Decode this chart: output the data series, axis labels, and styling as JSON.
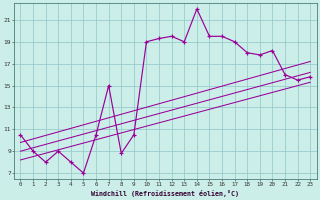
{
  "xlabel": "Windchill (Refroidissement éolien,°C)",
  "bg_color": "#cceee8",
  "grid_color": "#99cccc",
  "line_color": "#990099",
  "xlim": [
    -0.5,
    23.5
  ],
  "ylim": [
    6.5,
    22.5
  ],
  "xtick_vals": [
    0,
    1,
    2,
    3,
    4,
    5,
    6,
    7,
    8,
    9,
    10,
    11,
    12,
    13,
    14,
    15,
    16,
    17,
    18,
    19,
    20,
    21,
    22,
    23
  ],
  "ytick_vals": [
    7,
    9,
    11,
    13,
    15,
    17,
    19,
    21
  ],
  "main_x": [
    0,
    1,
    2,
    3,
    4,
    5,
    6,
    7,
    8,
    9,
    10,
    11,
    12,
    13,
    14,
    15,
    16,
    17,
    18,
    19,
    20,
    21,
    22,
    23
  ],
  "main_y": [
    10.5,
    9.0,
    8.0,
    9.0,
    8.0,
    7.0,
    10.5,
    15.0,
    8.8,
    10.5,
    19.0,
    19.3,
    19.5,
    19.0,
    22.0,
    19.5,
    19.5,
    19.0,
    18.0,
    17.8,
    18.2,
    16.0,
    15.5,
    15.8
  ],
  "line1_x": [
    0,
    23
  ],
  "line1_y": [
    8.2,
    15.3
  ],
  "line2_x": [
    0,
    23
  ],
  "line2_y": [
    9.0,
    16.2
  ],
  "line3_x": [
    0,
    23
  ],
  "line3_y": [
    9.8,
    17.2
  ]
}
